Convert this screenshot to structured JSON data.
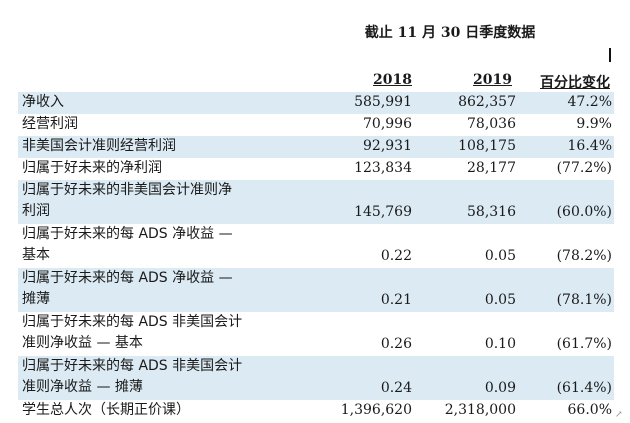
{
  "title": "截止 11 月 30 日季度数据",
  "columns": {
    "y2018": "2018",
    "y2019": "2019",
    "pct": "百分比变化"
  },
  "rows": [
    {
      "label": "净收入",
      "v2018": "585,991",
      "v2019": "862,357",
      "pct": "47.2%",
      "shaded": true
    },
    {
      "label": "经营利润",
      "v2018": "70,996",
      "v2019": "78,036",
      "pct": "9.9%",
      "shaded": false
    },
    {
      "label": "非美国会计准则经营利润",
      "v2018": "92,931",
      "v2019": "108,175",
      "pct": "16.4%",
      "shaded": true
    },
    {
      "label": "归属于好未来的净利润",
      "v2018": "123,834",
      "v2019": "28,177",
      "pct": "(77.2%)",
      "shaded": false
    },
    {
      "label": "归属于好未来的非美国会计准则净\n利润",
      "v2018": "145,769",
      "v2019": "58,316",
      "pct": "(60.0%)",
      "shaded": true
    },
    {
      "label": "归属于好未来的每 ADS 净收益 —\n基本",
      "v2018": "0.22",
      "v2019": "0.05",
      "pct": "(78.2%)",
      "shaded": false
    },
    {
      "label": "归属于好未来的每 ADS 净收益 —\n摊薄",
      "v2018": "0.21",
      "v2019": "0.05",
      "pct": "(78.1%)",
      "shaded": true
    },
    {
      "label": "归属于好未来的每 ADS 非美国会计\n准则净收益 — 基本",
      "v2018": "0.26",
      "v2019": "0.10",
      "pct": "(61.7%)",
      "shaded": false
    },
    {
      "label": "归属于好未来的每 ADS 非美国会计\n准则净收益 — 摊薄",
      "v2018": "0.24",
      "v2019": "0.09",
      "pct": "(61.4%)",
      "shaded": true
    },
    {
      "label": "学生总人次（长期正价课）",
      "v2018": "1,396,620",
      "v2019": "2,318,000",
      "pct": "66.0%",
      "shaded": false
    }
  ],
  "colors": {
    "shade": "#dbeaf3"
  }
}
